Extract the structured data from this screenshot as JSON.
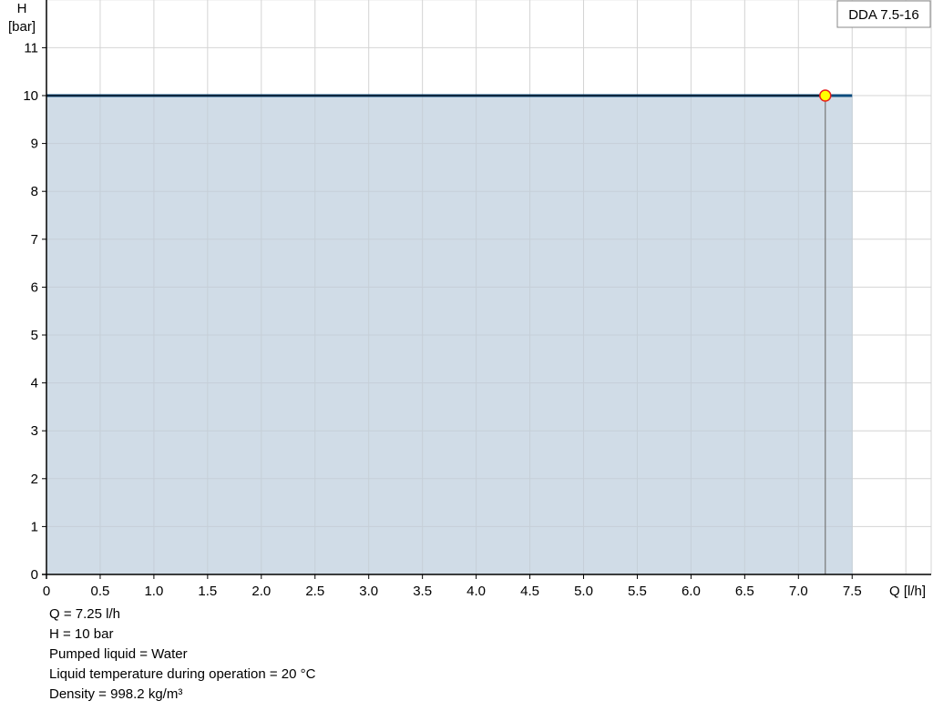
{
  "chart_data": {
    "type": "area",
    "ylabel_line1": "H",
    "ylabel_line2": "[bar]",
    "xlabel": "Q [l/h]",
    "xlim": [
      0,
      8.0
    ],
    "ylim": [
      0,
      12
    ],
    "x_ticks": [
      "0",
      "0.5",
      "1.0",
      "1.5",
      "2.0",
      "2.5",
      "3.0",
      "3.5",
      "4.0",
      "4.5",
      "5.0",
      "5.5",
      "6.0",
      "6.5",
      "7.0",
      "7.5"
    ],
    "x_tick_values": [
      0,
      0.5,
      1,
      1.5,
      2,
      2.5,
      3,
      3.5,
      4,
      4.5,
      5,
      5.5,
      6,
      6.5,
      7,
      7.5
    ],
    "y_ticks": [
      "0",
      "1",
      "2",
      "3",
      "4",
      "5",
      "6",
      "7",
      "8",
      "9",
      "10",
      "11"
    ],
    "y_tick_values": [
      0,
      1,
      2,
      3,
      4,
      5,
      6,
      7,
      8,
      9,
      10,
      11
    ],
    "grid": true,
    "legend": {
      "label": "DDA 7.5-16",
      "placement": "top-right"
    },
    "series": [
      {
        "x": [
          0,
          7.5
        ],
        "y": [
          10,
          10
        ],
        "color": "#0b4b7d",
        "fill": "#d0dce7"
      }
    ],
    "operating_point": {
      "x": 7.25,
      "y": 10,
      "color": "#ffff00",
      "border": "#e8201e"
    }
  },
  "info": {
    "lines": [
      "Q = 7.25 l/h",
      "H = 10 bar",
      "Pumped liquid = Water",
      "Liquid temperature during operation = 20 °C",
      "Density = 998.2 kg/m³"
    ]
  }
}
